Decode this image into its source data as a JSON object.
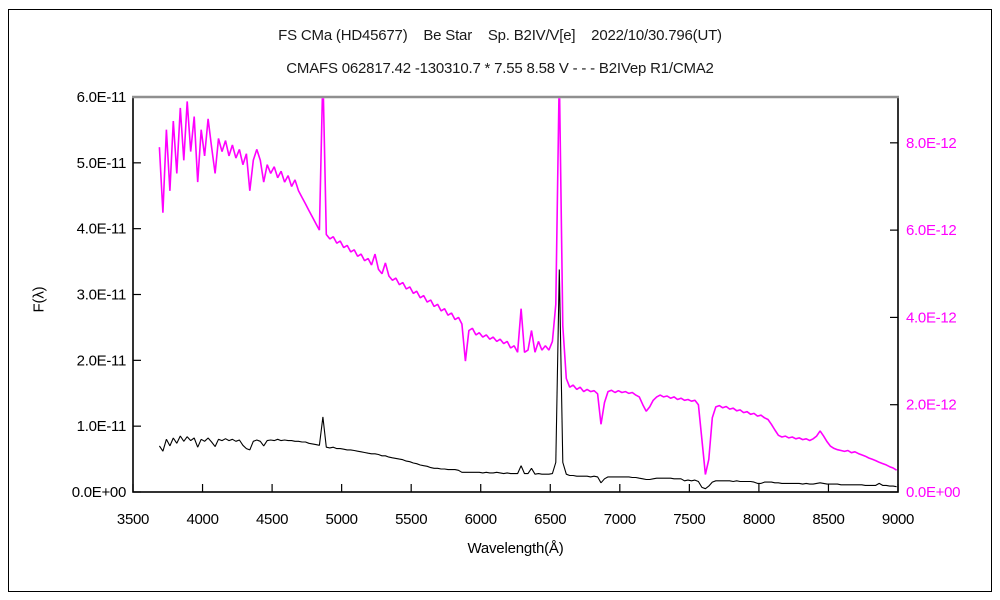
{
  "chart_data": {
    "type": "line",
    "title_line1": "FS CMa (HD45677)    Be Star    Sp. B2IV/V[e]    2022/10/30.796(UT)",
    "title_line2": "CMAFS 062817.42 -130310.7 * 7.55 8.58 V - - - B2IVep R1/CMA2",
    "xlabel": "Wavelength(Å)",
    "ylabel_left": "F(λ)",
    "colors": {
      "left_series": "#000000",
      "right_series": "#ff00ff",
      "frame": "#000000",
      "frame_top": "#8f8f8f",
      "background": "#ffffff"
    },
    "x_axis": {
      "min": 3500,
      "max": 9000,
      "tick_step": 500,
      "tick_labels": [
        "3500",
        "4000",
        "4500",
        "5000",
        "5500",
        "6000",
        "6500",
        "7000",
        "7500",
        "8000",
        "8500",
        "9000"
      ]
    },
    "left_axis": {
      "min": 0,
      "max": 6e-11,
      "tick_values": [
        0,
        1e-11,
        2e-11,
        3e-11,
        4e-11,
        5e-11,
        6e-11
      ],
      "tick_labels": [
        "0.0E+00",
        "1.0E-11",
        "2.0E-11",
        "3.0E-11",
        "4.0E-11",
        "5.0E-11",
        "6.0E-11"
      ]
    },
    "right_axis": {
      "min": 0,
      "max": 9.05e-12,
      "tick_values": [
        0,
        2e-12,
        4e-12,
        6e-12,
        8e-12
      ],
      "tick_labels": [
        "0.0E+00",
        "2.0E-12",
        "4.0E-12",
        "6.0E-12",
        "8.0E-12"
      ]
    },
    "series": [
      {
        "name": "spectrum-black-left-axis",
        "color": "#000000",
        "axis": "left",
        "scale": 1e-11,
        "x_start": 3690,
        "x_step": 25,
        "values": [
          0.7,
          0.62,
          0.8,
          0.7,
          0.82,
          0.74,
          0.85,
          0.77,
          0.84,
          0.78,
          0.82,
          0.68,
          0.8,
          0.77,
          0.82,
          0.76,
          0.69,
          0.8,
          0.78,
          0.81,
          0.78,
          0.8,
          0.77,
          0.79,
          0.71,
          0.66,
          0.64,
          0.77,
          0.79,
          0.77,
          0.7,
          0.78,
          0.79,
          0.78,
          0.8,
          0.78,
          0.79,
          0.78,
          0.78,
          0.77,
          0.77,
          0.76,
          0.76,
          0.74,
          0.73,
          0.72,
          0.71,
          1.14,
          0.68,
          0.67,
          0.68,
          0.66,
          0.66,
          0.65,
          0.64,
          0.64,
          0.63,
          0.62,
          0.61,
          0.6,
          0.59,
          0.58,
          0.58,
          0.57,
          0.55,
          0.55,
          0.53,
          0.52,
          0.51,
          0.5,
          0.49,
          0.47,
          0.46,
          0.44,
          0.43,
          0.41,
          0.4,
          0.39,
          0.37,
          0.36,
          0.36,
          0.35,
          0.35,
          0.34,
          0.34,
          0.34,
          0.33,
          0.3,
          0.3,
          0.3,
          0.3,
          0.3,
          0.3,
          0.29,
          0.3,
          0.29,
          0.29,
          0.3,
          0.29,
          0.28,
          0.29,
          0.28,
          0.28,
          0.28,
          0.4,
          0.28,
          0.28,
          0.36,
          0.27,
          0.28,
          0.27,
          0.27,
          0.27,
          0.28,
          0.45,
          3.38,
          0.45,
          0.27,
          0.25,
          0.25,
          0.24,
          0.24,
          0.24,
          0.24,
          0.23,
          0.24,
          0.23,
          0.14,
          0.2,
          0.23,
          0.23,
          0.23,
          0.23,
          0.23,
          0.23,
          0.23,
          0.22,
          0.22,
          0.21,
          0.2,
          0.19,
          0.19,
          0.2,
          0.21,
          0.21,
          0.21,
          0.21,
          0.21,
          0.2,
          0.2,
          0.2,
          0.17,
          0.18,
          0.17,
          0.18,
          0.16,
          0.07,
          0.05,
          0.09,
          0.15,
          0.17,
          0.17,
          0.17,
          0.17,
          0.17,
          0.16,
          0.17,
          0.16,
          0.16,
          0.16,
          0.16,
          0.15,
          0.13,
          0.13,
          0.15,
          0.15,
          0.15,
          0.14,
          0.14,
          0.13,
          0.13,
          0.13,
          0.13,
          0.13,
          0.13,
          0.12,
          0.13,
          0.12,
          0.12,
          0.13,
          0.14,
          0.13,
          0.12,
          0.12,
          0.12,
          0.12,
          0.11,
          0.11,
          0.11,
          0.11,
          0.11,
          0.11,
          0.11,
          0.1,
          0.1,
          0.1,
          0.1,
          0.13,
          0.1,
          0.1,
          0.09,
          0.09,
          0.08
        ]
      },
      {
        "name": "spectrum-magenta-right-axis",
        "color": "#ff00ff",
        "axis": "right",
        "scale": 1e-12,
        "x_start": 3690,
        "x_step": 25,
        "values": [
          7.9,
          6.4,
          8.3,
          6.9,
          8.5,
          7.3,
          8.8,
          7.6,
          8.95,
          7.8,
          8.6,
          7.1,
          8.3,
          7.7,
          8.55,
          7.9,
          7.3,
          8.1,
          7.8,
          8.05,
          7.7,
          7.95,
          7.65,
          7.85,
          7.5,
          7.75,
          6.9,
          7.6,
          7.85,
          7.6,
          7.1,
          7.5,
          7.3,
          7.45,
          7.2,
          7.35,
          7.1,
          7.25,
          7.0,
          7.15,
          6.9,
          6.75,
          6.6,
          6.45,
          6.3,
          6.15,
          6.0,
          9.6,
          5.9,
          5.8,
          5.85,
          5.7,
          5.75,
          5.6,
          5.65,
          5.5,
          5.55,
          5.4,
          5.45,
          5.3,
          5.35,
          5.2,
          5.45,
          5.1,
          5.0,
          5.25,
          4.95,
          4.85,
          4.9,
          4.75,
          4.8,
          4.65,
          4.7,
          4.55,
          4.6,
          4.45,
          4.5,
          4.35,
          4.4,
          4.25,
          4.3,
          4.15,
          4.2,
          4.05,
          4.1,
          3.95,
          4.0,
          3.85,
          3.0,
          3.7,
          3.75,
          3.6,
          3.65,
          3.55,
          3.6,
          3.5,
          3.55,
          3.45,
          3.5,
          3.4,
          3.45,
          3.3,
          3.35,
          3.2,
          4.2,
          3.2,
          3.25,
          3.7,
          3.2,
          3.45,
          3.25,
          3.35,
          3.25,
          3.45,
          4.3,
          9.6,
          3.8,
          2.6,
          2.4,
          2.45,
          2.35,
          2.4,
          2.3,
          2.35,
          2.3,
          2.32,
          2.25,
          1.55,
          2.05,
          2.3,
          2.33,
          2.28,
          2.32,
          2.28,
          2.3,
          2.26,
          2.28,
          2.22,
          2.18,
          2.0,
          1.85,
          1.95,
          2.1,
          2.18,
          2.22,
          2.18,
          2.2,
          2.15,
          2.18,
          2.12,
          2.15,
          2.1,
          2.12,
          2.08,
          2.1,
          2.0,
          1.2,
          0.4,
          0.75,
          1.7,
          1.95,
          1.98,
          1.93,
          1.96,
          1.9,
          1.92,
          1.86,
          1.88,
          1.82,
          1.84,
          1.78,
          1.8,
          1.74,
          1.76,
          1.7,
          1.66,
          1.55,
          1.42,
          1.3,
          1.26,
          1.28,
          1.24,
          1.26,
          1.22,
          1.24,
          1.2,
          1.22,
          1.18,
          1.22,
          1.28,
          1.4,
          1.28,
          1.15,
          1.05,
          1.0,
          0.97,
          0.95,
          0.93,
          0.95,
          0.9,
          0.92,
          0.88,
          0.85,
          0.82,
          0.78,
          0.75,
          0.72,
          0.68,
          0.65,
          0.62,
          0.58,
          0.55,
          0.5
        ]
      }
    ]
  }
}
